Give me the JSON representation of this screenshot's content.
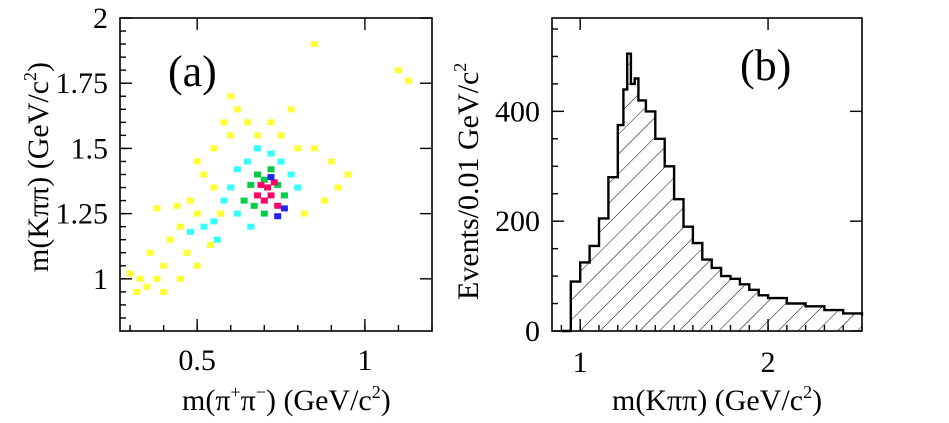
{
  "chart_data": [
    {
      "type": "heatmap",
      "panel_label": "(a)",
      "xlabel_main": "m(π",
      "xlabel_sup": "+",
      "xlabel_mid": "π",
      "xlabel_sup2": "−",
      "xlabel_tail": ") (GeV/c",
      "xlabel_exp": "2",
      "xlabel_close": ")",
      "ylabel_main": "m(Kππ) (GeV/c",
      "ylabel_exp": "2",
      "ylabel_close": ")",
      "xlim": [
        0.27,
        1.2
      ],
      "ylim": [
        0.8,
        2.0
      ],
      "x_ticks": [
        {
          "v": 0.5,
          "label": "0.5"
        },
        {
          "v": 1.0,
          "label": "1"
        }
      ],
      "y_ticks": [
        {
          "v": 1.0,
          "label": "1"
        },
        {
          "v": 1.25,
          "label": "1.25"
        },
        {
          "v": 1.5,
          "label": "1.5"
        },
        {
          "v": 1.75,
          "label": "1.75"
        },
        {
          "v": 2.0,
          "label": "2"
        }
      ],
      "color_scale": [
        "#ffff33",
        "#33ffff",
        "#00cc44",
        "#ff0066",
        "#2222ee"
      ],
      "bins": [
        {
          "x": 0.32,
          "y": 0.95,
          "level": 0
        },
        {
          "x": 0.35,
          "y": 0.97,
          "level": 0
        },
        {
          "x": 0.38,
          "y": 1.0,
          "level": 0
        },
        {
          "x": 0.36,
          "y": 1.1,
          "level": 0
        },
        {
          "x": 0.4,
          "y": 1.05,
          "level": 0
        },
        {
          "x": 0.42,
          "y": 1.15,
          "level": 0
        },
        {
          "x": 0.45,
          "y": 1.2,
          "level": 0
        },
        {
          "x": 0.47,
          "y": 1.1,
          "level": 0
        },
        {
          "x": 0.48,
          "y": 1.3,
          "level": 0
        },
        {
          "x": 0.5,
          "y": 1.25,
          "level": 0
        },
        {
          "x": 0.52,
          "y": 1.4,
          "level": 0
        },
        {
          "x": 0.55,
          "y": 1.5,
          "level": 0
        },
        {
          "x": 0.55,
          "y": 1.35,
          "level": 0
        },
        {
          "x": 0.58,
          "y": 1.6,
          "level": 0
        },
        {
          "x": 0.6,
          "y": 1.55,
          "level": 0
        },
        {
          "x": 0.62,
          "y": 1.65,
          "level": 0
        },
        {
          "x": 0.65,
          "y": 1.6,
          "level": 0
        },
        {
          "x": 0.68,
          "y": 1.55,
          "level": 0
        },
        {
          "x": 0.72,
          "y": 1.6,
          "level": 0
        },
        {
          "x": 0.75,
          "y": 1.55,
          "level": 0
        },
        {
          "x": 0.8,
          "y": 1.5,
          "level": 0
        },
        {
          "x": 0.85,
          "y": 1.5,
          "level": 0
        },
        {
          "x": 0.9,
          "y": 1.45,
          "level": 0
        },
        {
          "x": 0.92,
          "y": 1.35,
          "level": 0
        },
        {
          "x": 0.88,
          "y": 1.3,
          "level": 0
        },
        {
          "x": 0.82,
          "y": 1.25,
          "level": 0
        },
        {
          "x": 0.5,
          "y": 1.05,
          "level": 0
        },
        {
          "x": 0.45,
          "y": 1.0,
          "level": 0
        },
        {
          "x": 0.4,
          "y": 0.95,
          "level": 0
        },
        {
          "x": 0.33,
          "y": 1.0,
          "level": 0
        },
        {
          "x": 0.3,
          "y": 1.02,
          "level": 0
        },
        {
          "x": 0.44,
          "y": 1.28,
          "level": 0
        },
        {
          "x": 0.5,
          "y": 1.45,
          "level": 0
        },
        {
          "x": 0.6,
          "y": 1.7,
          "level": 0
        },
        {
          "x": 0.95,
          "y": 1.4,
          "level": 0
        },
        {
          "x": 0.78,
          "y": 1.65,
          "level": 0
        },
        {
          "x": 0.85,
          "y": 1.9,
          "level": 0
        },
        {
          "x": 1.1,
          "y": 1.8,
          "level": 0
        },
        {
          "x": 1.13,
          "y": 1.76,
          "level": 0
        },
        {
          "x": 0.38,
          "y": 1.27,
          "level": 0
        },
        {
          "x": 0.54,
          "y": 1.13,
          "level": 0
        },
        {
          "x": 0.57,
          "y": 1.25,
          "level": 0
        },
        {
          "x": 0.48,
          "y": 1.18,
          "level": 1
        },
        {
          "x": 0.52,
          "y": 1.2,
          "level": 1
        },
        {
          "x": 0.55,
          "y": 1.22,
          "level": 1
        },
        {
          "x": 0.58,
          "y": 1.3,
          "level": 1
        },
        {
          "x": 0.6,
          "y": 1.35,
          "level": 1
        },
        {
          "x": 0.62,
          "y": 1.42,
          "level": 1
        },
        {
          "x": 0.65,
          "y": 1.45,
          "level": 1
        },
        {
          "x": 0.68,
          "y": 1.5,
          "level": 1
        },
        {
          "x": 0.72,
          "y": 1.48,
          "level": 1
        },
        {
          "x": 0.75,
          "y": 1.45,
          "level": 1
        },
        {
          "x": 0.78,
          "y": 1.4,
          "level": 1
        },
        {
          "x": 0.8,
          "y": 1.35,
          "level": 1
        },
        {
          "x": 0.62,
          "y": 1.25,
          "level": 1
        },
        {
          "x": 0.66,
          "y": 1.2,
          "level": 1
        },
        {
          "x": 0.56,
          "y": 1.15,
          "level": 1
        },
        {
          "x": 0.64,
          "y": 1.3,
          "level": 2
        },
        {
          "x": 0.66,
          "y": 1.36,
          "level": 2
        },
        {
          "x": 0.68,
          "y": 1.4,
          "level": 2
        },
        {
          "x": 0.7,
          "y": 1.38,
          "level": 2
        },
        {
          "x": 0.74,
          "y": 1.36,
          "level": 2
        },
        {
          "x": 0.76,
          "y": 1.32,
          "level": 2
        },
        {
          "x": 0.7,
          "y": 1.25,
          "level": 2
        },
        {
          "x": 0.67,
          "y": 1.28,
          "level": 2
        },
        {
          "x": 0.72,
          "y": 1.42,
          "level": 2
        },
        {
          "x": 0.68,
          "y": 1.32,
          "level": 3
        },
        {
          "x": 0.7,
          "y": 1.3,
          "level": 3
        },
        {
          "x": 0.72,
          "y": 1.32,
          "level": 3
        },
        {
          "x": 0.74,
          "y": 1.28,
          "level": 3
        },
        {
          "x": 0.71,
          "y": 1.35,
          "level": 3
        },
        {
          "x": 0.73,
          "y": 1.37,
          "level": 3
        },
        {
          "x": 0.69,
          "y": 1.36,
          "level": 3
        },
        {
          "x": 0.74,
          "y": 1.24,
          "level": 4
        },
        {
          "x": 0.76,
          "y": 1.27,
          "level": 4
        },
        {
          "x": 0.72,
          "y": 1.39,
          "level": 4
        }
      ]
    },
    {
      "type": "area",
      "panel_label": "(b)",
      "xlabel_main": "m(Kππ) (GeV/c",
      "xlabel_exp": "2",
      "xlabel_close": ")",
      "ylabel_main": "Events/0.01 GeV/c",
      "ylabel_exp": "2",
      "xlim": [
        0.85,
        2.5
      ],
      "ylim": [
        0,
        570
      ],
      "x_ticks": [
        {
          "v": 1.0,
          "label": "1"
        },
        {
          "v": 2.0,
          "label": "2"
        }
      ],
      "y_ticks": [
        {
          "v": 0,
          "label": "0"
        },
        {
          "v": 200,
          "label": "200"
        },
        {
          "v": 400,
          "label": "400"
        }
      ],
      "fill_pattern": "diagonal hatch",
      "x": [
        0.9,
        0.95,
        1.0,
        1.05,
        1.1,
        1.15,
        1.2,
        1.23,
        1.25,
        1.27,
        1.29,
        1.31,
        1.35,
        1.4,
        1.45,
        1.5,
        1.55,
        1.6,
        1.65,
        1.7,
        1.75,
        1.8,
        1.85,
        1.9,
        1.95,
        2.0,
        2.1,
        2.2,
        2.3,
        2.4,
        2.5
      ],
      "y": [
        0,
        90,
        125,
        155,
        205,
        280,
        375,
        440,
        505,
        450,
        460,
        420,
        400,
        350,
        300,
        240,
        190,
        160,
        130,
        115,
        100,
        95,
        85,
        75,
        65,
        60,
        50,
        45,
        38,
        32,
        28
      ]
    }
  ]
}
